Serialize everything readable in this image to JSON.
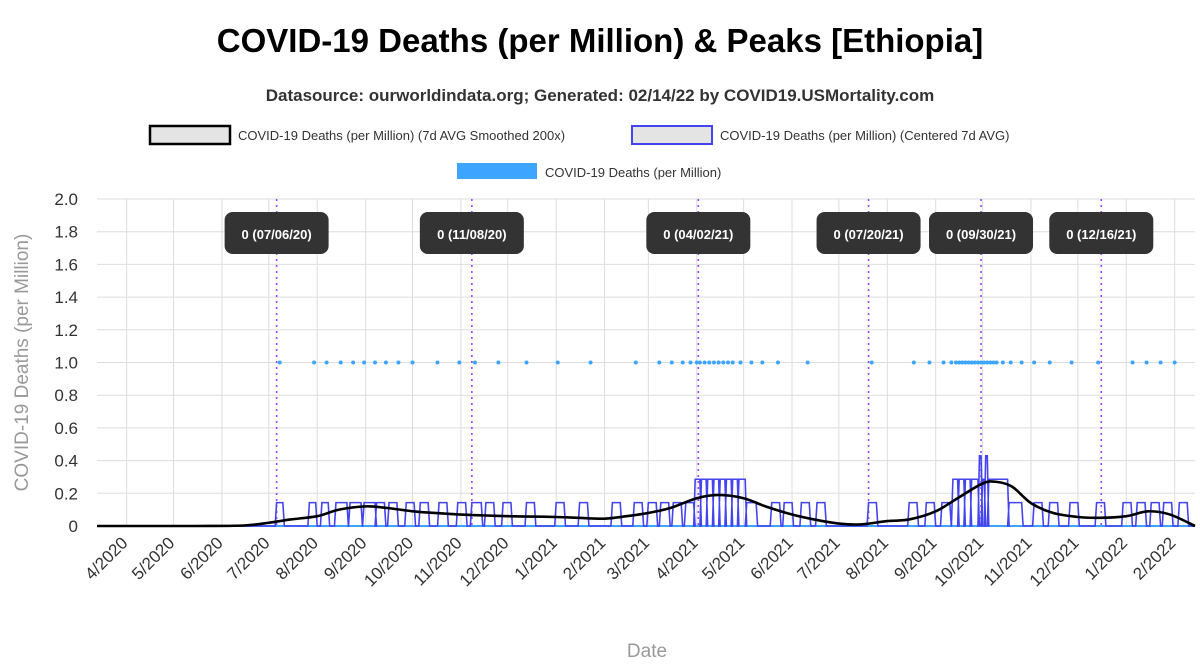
{
  "chart_data": {
    "type": "line",
    "title": "COVID-19 Deaths (per Million) & Peaks [Ethiopia]",
    "subtitle": "Datasource: ourworldindata.org; Generated: 02/14/22 by COVID19.USMortality.com",
    "xlabel": "Date",
    "ylabel": "COVID-19 Deaths (per Million)",
    "x_range": [
      "2020-03-13",
      "2022-02-14"
    ],
    "ylim": [
      0,
      2.0
    ],
    "y_ticks": [
      "0",
      "0.2",
      "0.4",
      "0.6",
      "0.8",
      "1.0",
      "1.2",
      "1.4",
      "1.6",
      "1.8",
      "2.0"
    ],
    "x_ticks": [
      {
        "date": "2020-04-01",
        "label": "4/2020"
      },
      {
        "date": "2020-05-01",
        "label": "5/2020"
      },
      {
        "date": "2020-06-01",
        "label": "6/2020"
      },
      {
        "date": "2020-07-01",
        "label": "7/2020"
      },
      {
        "date": "2020-08-01",
        "label": "8/2020"
      },
      {
        "date": "2020-09-01",
        "label": "9/2020"
      },
      {
        "date": "2020-10-01",
        "label": "10/2020"
      },
      {
        "date": "2020-11-01",
        "label": "11/2020"
      },
      {
        "date": "2020-12-01",
        "label": "12/2020"
      },
      {
        "date": "2021-01-01",
        "label": "1/2021"
      },
      {
        "date": "2021-02-01",
        "label": "2/2021"
      },
      {
        "date": "2021-03-01",
        "label": "3/2021"
      },
      {
        "date": "2021-04-01",
        "label": "4/2021"
      },
      {
        "date": "2021-05-01",
        "label": "5/2021"
      },
      {
        "date": "2021-06-01",
        "label": "6/2021"
      },
      {
        "date": "2021-07-01",
        "label": "7/2021"
      },
      {
        "date": "2021-08-01",
        "label": "8/2021"
      },
      {
        "date": "2021-09-01",
        "label": "9/2021"
      },
      {
        "date": "2021-10-01",
        "label": "10/2021"
      },
      {
        "date": "2021-11-01",
        "label": "11/2021"
      },
      {
        "date": "2021-12-01",
        "label": "12/2021"
      },
      {
        "date": "2022-01-01",
        "label": "1/2022"
      },
      {
        "date": "2022-02-01",
        "label": "2/2022"
      }
    ],
    "grid": true,
    "legend_position": "top",
    "series": [
      {
        "name": "COVID-19 Deaths (per Million) (7d AVG Smoothed 200x)",
        "style": "smooth-line",
        "color": "#000000",
        "points": [
          [
            "2020-03-13",
            0
          ],
          [
            "2020-05-15",
            0
          ],
          [
            "2020-06-15",
            0.003
          ],
          [
            "2020-07-01",
            0.02
          ],
          [
            "2020-07-15",
            0.04
          ],
          [
            "2020-08-01",
            0.06
          ],
          [
            "2020-08-15",
            0.1
          ],
          [
            "2020-09-01",
            0.12
          ],
          [
            "2020-09-15",
            0.11
          ],
          [
            "2020-10-01",
            0.09
          ],
          [
            "2020-10-15",
            0.08
          ],
          [
            "2020-11-01",
            0.07
          ],
          [
            "2020-11-15",
            0.065
          ],
          [
            "2020-12-01",
            0.06
          ],
          [
            "2020-12-15",
            0.058
          ],
          [
            "2021-01-01",
            0.055
          ],
          [
            "2021-01-15",
            0.05
          ],
          [
            "2021-02-01",
            0.045
          ],
          [
            "2021-02-15",
            0.06
          ],
          [
            "2021-03-01",
            0.08
          ],
          [
            "2021-03-15",
            0.11
          ],
          [
            "2021-04-01",
            0.17
          ],
          [
            "2021-04-15",
            0.19
          ],
          [
            "2021-05-01",
            0.17
          ],
          [
            "2021-05-15",
            0.12
          ],
          [
            "2021-06-01",
            0.07
          ],
          [
            "2021-06-15",
            0.04
          ],
          [
            "2021-07-01",
            0.015
          ],
          [
            "2021-07-15",
            0.01
          ],
          [
            "2021-08-01",
            0.03
          ],
          [
            "2021-08-15",
            0.04
          ],
          [
            "2021-09-01",
            0.09
          ],
          [
            "2021-09-15",
            0.17
          ],
          [
            "2021-10-01",
            0.26
          ],
          [
            "2021-10-10",
            0.27
          ],
          [
            "2021-10-20",
            0.24
          ],
          [
            "2021-11-01",
            0.14
          ],
          [
            "2021-11-15",
            0.08
          ],
          [
            "2021-12-01",
            0.055
          ],
          [
            "2021-12-15",
            0.05
          ],
          [
            "2022-01-01",
            0.06
          ],
          [
            "2022-01-15",
            0.09
          ],
          [
            "2022-01-29",
            0.07
          ],
          [
            "2022-02-14",
            0
          ]
        ]
      },
      {
        "name": "COVID-19 Deaths (per Million) (Centered 7d AVG)",
        "style": "step-pulses",
        "color": "#4444ee",
        "pulses": [
          {
            "start": "2020-07-06",
            "end": "2020-07-10",
            "value": 0.143
          },
          {
            "start": "2020-07-27",
            "end": "2020-07-31",
            "value": 0.143
          },
          {
            "start": "2020-08-04",
            "end": "2020-08-08",
            "value": 0.143
          },
          {
            "start": "2020-08-13",
            "end": "2020-08-20",
            "value": 0.143
          },
          {
            "start": "2020-08-22",
            "end": "2020-08-29",
            "value": 0.143
          },
          {
            "start": "2020-08-31",
            "end": "2020-09-07",
            "value": 0.143
          },
          {
            "start": "2020-09-08",
            "end": "2020-09-13",
            "value": 0.143
          },
          {
            "start": "2020-09-16",
            "end": "2020-09-21",
            "value": 0.143
          },
          {
            "start": "2020-09-27",
            "end": "2020-10-02",
            "value": 0.143
          },
          {
            "start": "2020-10-06",
            "end": "2020-10-11",
            "value": 0.143
          },
          {
            "start": "2020-10-18",
            "end": "2020-10-23",
            "value": 0.143
          },
          {
            "start": "2020-10-30",
            "end": "2020-11-04",
            "value": 0.143
          },
          {
            "start": "2020-11-08",
            "end": "2020-11-14",
            "value": 0.143
          },
          {
            "start": "2020-11-17",
            "end": "2020-11-22",
            "value": 0.143
          },
          {
            "start": "2020-11-28",
            "end": "2020-12-03",
            "value": 0.143
          },
          {
            "start": "2020-12-13",
            "end": "2020-12-18",
            "value": 0.143
          },
          {
            "start": "2021-01-01",
            "end": "2021-01-06",
            "value": 0.143
          },
          {
            "start": "2021-01-16",
            "end": "2021-01-21",
            "value": 0.143
          },
          {
            "start": "2021-02-06",
            "end": "2021-02-11",
            "value": 0.143
          },
          {
            "start": "2021-02-20",
            "end": "2021-02-25",
            "value": 0.143
          },
          {
            "start": "2021-03-01",
            "end": "2021-03-06",
            "value": 0.143
          },
          {
            "start": "2021-03-09",
            "end": "2021-03-14",
            "value": 0.143
          },
          {
            "start": "2021-03-17",
            "end": "2021-03-22",
            "value": 0.143
          },
          {
            "start": "2021-03-25",
            "end": "2021-03-30",
            "value": 0.143
          },
          {
            "start": "2021-03-31",
            "end": "2021-04-03",
            "value": 0.286
          },
          {
            "start": "2021-04-04",
            "end": "2021-04-07",
            "value": 0.286
          },
          {
            "start": "2021-04-08",
            "end": "2021-04-11",
            "value": 0.286
          },
          {
            "start": "2021-04-12",
            "end": "2021-04-15",
            "value": 0.286
          },
          {
            "start": "2021-04-16",
            "end": "2021-04-19",
            "value": 0.286
          },
          {
            "start": "2021-04-20",
            "end": "2021-04-23",
            "value": 0.286
          },
          {
            "start": "2021-04-24",
            "end": "2021-04-27",
            "value": 0.286
          },
          {
            "start": "2021-04-28",
            "end": "2021-05-02",
            "value": 0.286
          },
          {
            "start": "2021-05-03",
            "end": "2021-05-09",
            "value": 0.143
          },
          {
            "start": "2021-05-19",
            "end": "2021-05-24",
            "value": 0.143
          },
          {
            "start": "2021-05-27",
            "end": "2021-06-01",
            "value": 0.143
          },
          {
            "start": "2021-06-07",
            "end": "2021-06-12",
            "value": 0.143
          },
          {
            "start": "2021-06-17",
            "end": "2021-06-22",
            "value": 0.143
          },
          {
            "start": "2021-07-20",
            "end": "2021-07-25",
            "value": 0.143
          },
          {
            "start": "2021-08-15",
            "end": "2021-08-20",
            "value": 0.143
          },
          {
            "start": "2021-08-26",
            "end": "2021-08-31",
            "value": 0.143
          },
          {
            "start": "2021-09-05",
            "end": "2021-09-10",
            "value": 0.143
          },
          {
            "start": "2021-09-12",
            "end": "2021-09-15",
            "value": 0.286
          },
          {
            "start": "2021-09-16",
            "end": "2021-09-19",
            "value": 0.286
          },
          {
            "start": "2021-09-20",
            "end": "2021-09-23",
            "value": 0.286
          },
          {
            "start": "2021-09-24",
            "end": "2021-09-28",
            "value": 0.286
          },
          {
            "start": "2021-09-29",
            "end": "2021-09-30",
            "value": 0.429
          },
          {
            "start": "2021-10-01",
            "end": "2021-10-02",
            "value": 0.286
          },
          {
            "start": "2021-10-03",
            "end": "2021-10-04",
            "value": 0.429
          },
          {
            "start": "2021-10-05",
            "end": "2021-10-17",
            "value": 0.286
          },
          {
            "start": "2021-10-18",
            "end": "2021-10-26",
            "value": 0.143
          },
          {
            "start": "2021-11-03",
            "end": "2021-11-08",
            "value": 0.143
          },
          {
            "start": "2021-11-13",
            "end": "2021-11-18",
            "value": 0.143
          },
          {
            "start": "2021-11-26",
            "end": "2021-12-01",
            "value": 0.143
          },
          {
            "start": "2021-12-13",
            "end": "2021-12-18",
            "value": 0.143
          },
          {
            "start": "2021-12-30",
            "end": "2022-01-04",
            "value": 0.143
          },
          {
            "start": "2022-01-08",
            "end": "2022-01-13",
            "value": 0.143
          },
          {
            "start": "2022-01-17",
            "end": "2022-01-22",
            "value": 0.143
          },
          {
            "start": "2022-01-25",
            "end": "2022-01-30",
            "value": 0.143
          },
          {
            "start": "2022-02-04",
            "end": "2022-02-09",
            "value": 0.143
          }
        ]
      },
      {
        "name": "COVID-19 Deaths (per Million)",
        "style": "points",
        "color": "#3da5ff",
        "nonzero_value": 1.0,
        "nonzero_dates": [
          "2020-07-08",
          "2020-07-30",
          "2020-08-07",
          "2020-08-16",
          "2020-08-24",
          "2020-08-31",
          "2020-09-07",
          "2020-09-14",
          "2020-09-22",
          "2020-10-01",
          "2020-10-17",
          "2020-10-31",
          "2020-11-10",
          "2020-11-25",
          "2020-12-13",
          "2021-01-02",
          "2021-01-23",
          "2021-02-21",
          "2021-03-08",
          "2021-03-16",
          "2021-03-23",
          "2021-03-28",
          "2021-04-01",
          "2021-04-03",
          "2021-04-06",
          "2021-04-09",
          "2021-04-12",
          "2021-04-15",
          "2021-04-18",
          "2021-04-21",
          "2021-04-24",
          "2021-04-29",
          "2021-05-06",
          "2021-05-13",
          "2021-05-23",
          "2021-06-11",
          "2021-07-22",
          "2021-08-18",
          "2021-08-28",
          "2021-09-06",
          "2021-09-11",
          "2021-09-14",
          "2021-09-16",
          "2021-09-18",
          "2021-09-20",
          "2021-09-22",
          "2021-09-24",
          "2021-09-26",
          "2021-09-28",
          "2021-09-30",
          "2021-10-02",
          "2021-10-04",
          "2021-10-06",
          "2021-10-08",
          "2021-10-10",
          "2021-10-14",
          "2021-10-19",
          "2021-10-26",
          "2021-11-03",
          "2021-11-13",
          "2021-11-27",
          "2021-12-14",
          "2022-01-05",
          "2022-01-14",
          "2022-01-23",
          "2022-02-01"
        ]
      }
    ],
    "peaks": [
      {
        "date": "2020-07-06",
        "label": "0 (07/06/20)"
      },
      {
        "date": "2020-11-08",
        "label": "0 (11/08/20)"
      },
      {
        "date": "2021-04-02",
        "label": "0 (04/02/21)"
      },
      {
        "date": "2021-07-20",
        "label": "0 (07/20/21)"
      },
      {
        "date": "2021-09-30",
        "label": "0 (09/30/21)"
      },
      {
        "date": "2021-12-16",
        "label": "0 (12/16/21)"
      }
    ],
    "colors": {
      "grid": "#dddddd",
      "axis_text": "#333333",
      "axis_title": "#999999",
      "peak_line": "#a040ff",
      "peak_box": "#333333",
      "peak_text": "#ffffff"
    }
  }
}
